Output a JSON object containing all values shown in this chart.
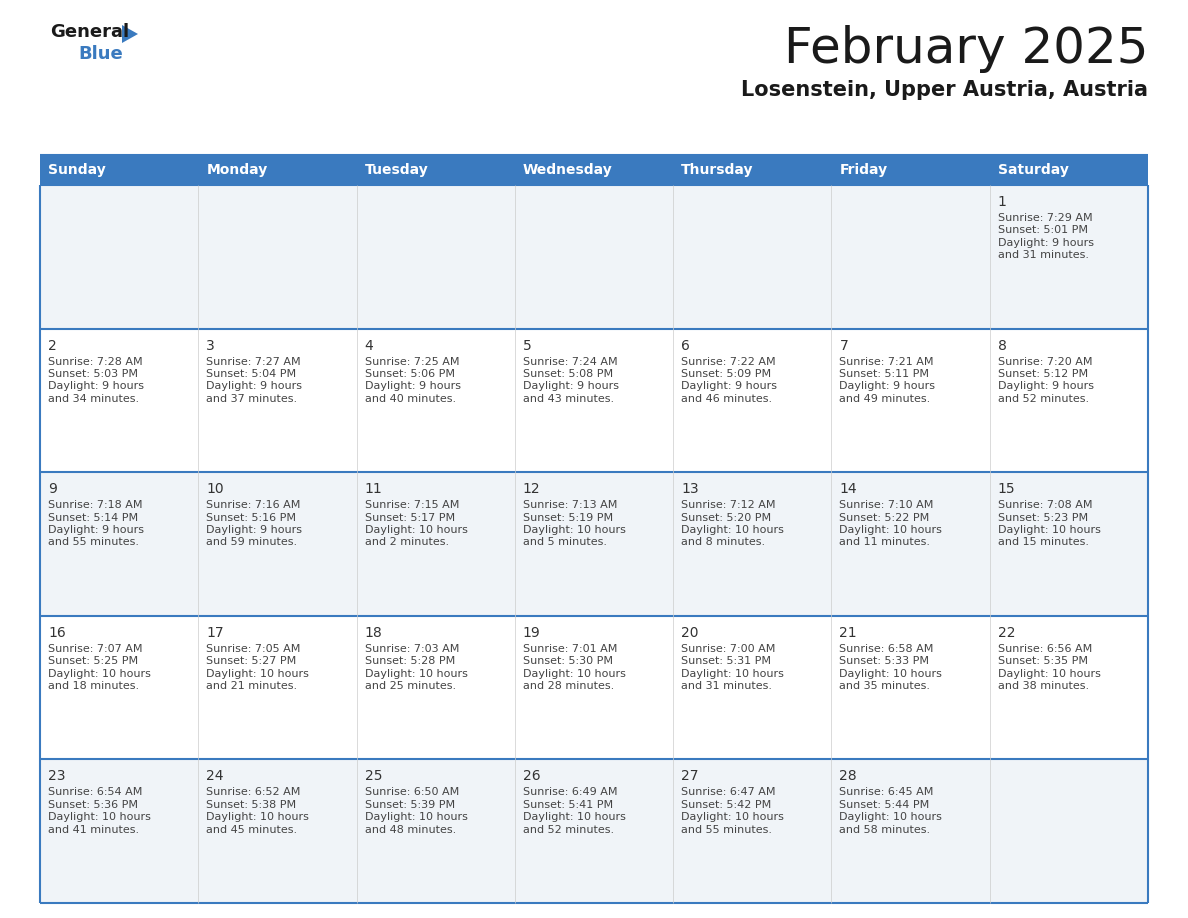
{
  "title": "February 2025",
  "subtitle": "Losenstein, Upper Austria, Austria",
  "header_color": "#3a7abf",
  "header_text_color": "#ffffff",
  "border_color": "#3a7abf",
  "day_headers": [
    "Sunday",
    "Monday",
    "Tuesday",
    "Wednesday",
    "Thursday",
    "Friday",
    "Saturday"
  ],
  "days_data": [
    {
      "day": 1,
      "col": 6,
      "row": 0,
      "sunrise": "7:29 AM",
      "sunset": "5:01 PM",
      "daylight_hours": 9,
      "daylight_minutes": 31
    },
    {
      "day": 2,
      "col": 0,
      "row": 1,
      "sunrise": "7:28 AM",
      "sunset": "5:03 PM",
      "daylight_hours": 9,
      "daylight_minutes": 34
    },
    {
      "day": 3,
      "col": 1,
      "row": 1,
      "sunrise": "7:27 AM",
      "sunset": "5:04 PM",
      "daylight_hours": 9,
      "daylight_minutes": 37
    },
    {
      "day": 4,
      "col": 2,
      "row": 1,
      "sunrise": "7:25 AM",
      "sunset": "5:06 PM",
      "daylight_hours": 9,
      "daylight_minutes": 40
    },
    {
      "day": 5,
      "col": 3,
      "row": 1,
      "sunrise": "7:24 AM",
      "sunset": "5:08 PM",
      "daylight_hours": 9,
      "daylight_minutes": 43
    },
    {
      "day": 6,
      "col": 4,
      "row": 1,
      "sunrise": "7:22 AM",
      "sunset": "5:09 PM",
      "daylight_hours": 9,
      "daylight_minutes": 46
    },
    {
      "day": 7,
      "col": 5,
      "row": 1,
      "sunrise": "7:21 AM",
      "sunset": "5:11 PM",
      "daylight_hours": 9,
      "daylight_minutes": 49
    },
    {
      "day": 8,
      "col": 6,
      "row": 1,
      "sunrise": "7:20 AM",
      "sunset": "5:12 PM",
      "daylight_hours": 9,
      "daylight_minutes": 52
    },
    {
      "day": 9,
      "col": 0,
      "row": 2,
      "sunrise": "7:18 AM",
      "sunset": "5:14 PM",
      "daylight_hours": 9,
      "daylight_minutes": 55
    },
    {
      "day": 10,
      "col": 1,
      "row": 2,
      "sunrise": "7:16 AM",
      "sunset": "5:16 PM",
      "daylight_hours": 9,
      "daylight_minutes": 59
    },
    {
      "day": 11,
      "col": 2,
      "row": 2,
      "sunrise": "7:15 AM",
      "sunset": "5:17 PM",
      "daylight_hours": 10,
      "daylight_minutes": 2
    },
    {
      "day": 12,
      "col": 3,
      "row": 2,
      "sunrise": "7:13 AM",
      "sunset": "5:19 PM",
      "daylight_hours": 10,
      "daylight_minutes": 5
    },
    {
      "day": 13,
      "col": 4,
      "row": 2,
      "sunrise": "7:12 AM",
      "sunset": "5:20 PM",
      "daylight_hours": 10,
      "daylight_minutes": 8
    },
    {
      "day": 14,
      "col": 5,
      "row": 2,
      "sunrise": "7:10 AM",
      "sunset": "5:22 PM",
      "daylight_hours": 10,
      "daylight_minutes": 11
    },
    {
      "day": 15,
      "col": 6,
      "row": 2,
      "sunrise": "7:08 AM",
      "sunset": "5:23 PM",
      "daylight_hours": 10,
      "daylight_minutes": 15
    },
    {
      "day": 16,
      "col": 0,
      "row": 3,
      "sunrise": "7:07 AM",
      "sunset": "5:25 PM",
      "daylight_hours": 10,
      "daylight_minutes": 18
    },
    {
      "day": 17,
      "col": 1,
      "row": 3,
      "sunrise": "7:05 AM",
      "sunset": "5:27 PM",
      "daylight_hours": 10,
      "daylight_minutes": 21
    },
    {
      "day": 18,
      "col": 2,
      "row": 3,
      "sunrise": "7:03 AM",
      "sunset": "5:28 PM",
      "daylight_hours": 10,
      "daylight_minutes": 25
    },
    {
      "day": 19,
      "col": 3,
      "row": 3,
      "sunrise": "7:01 AM",
      "sunset": "5:30 PM",
      "daylight_hours": 10,
      "daylight_minutes": 28
    },
    {
      "day": 20,
      "col": 4,
      "row": 3,
      "sunrise": "7:00 AM",
      "sunset": "5:31 PM",
      "daylight_hours": 10,
      "daylight_minutes": 31
    },
    {
      "day": 21,
      "col": 5,
      "row": 3,
      "sunrise": "6:58 AM",
      "sunset": "5:33 PM",
      "daylight_hours": 10,
      "daylight_minutes": 35
    },
    {
      "day": 22,
      "col": 6,
      "row": 3,
      "sunrise": "6:56 AM",
      "sunset": "5:35 PM",
      "daylight_hours": 10,
      "daylight_minutes": 38
    },
    {
      "day": 23,
      "col": 0,
      "row": 4,
      "sunrise": "6:54 AM",
      "sunset": "5:36 PM",
      "daylight_hours": 10,
      "daylight_minutes": 41
    },
    {
      "day": 24,
      "col": 1,
      "row": 4,
      "sunrise": "6:52 AM",
      "sunset": "5:38 PM",
      "daylight_hours": 10,
      "daylight_minutes": 45
    },
    {
      "day": 25,
      "col": 2,
      "row": 4,
      "sunrise": "6:50 AM",
      "sunset": "5:39 PM",
      "daylight_hours": 10,
      "daylight_minutes": 48
    },
    {
      "day": 26,
      "col": 3,
      "row": 4,
      "sunrise": "6:49 AM",
      "sunset": "5:41 PM",
      "daylight_hours": 10,
      "daylight_minutes": 52
    },
    {
      "day": 27,
      "col": 4,
      "row": 4,
      "sunrise": "6:47 AM",
      "sunset": "5:42 PM",
      "daylight_hours": 10,
      "daylight_minutes": 55
    },
    {
      "day": 28,
      "col": 5,
      "row": 4,
      "sunrise": "6:45 AM",
      "sunset": "5:44 PM",
      "daylight_hours": 10,
      "daylight_minutes": 58
    }
  ],
  "n_rows": 5,
  "n_cols": 7,
  "logo_blue_color": "#3a7abf",
  "logo_triangle_color": "#3a7abf",
  "title_fontsize": 36,
  "subtitle_fontsize": 15,
  "dayheader_fontsize": 10,
  "daynum_fontsize": 10,
  "info_fontsize": 8
}
